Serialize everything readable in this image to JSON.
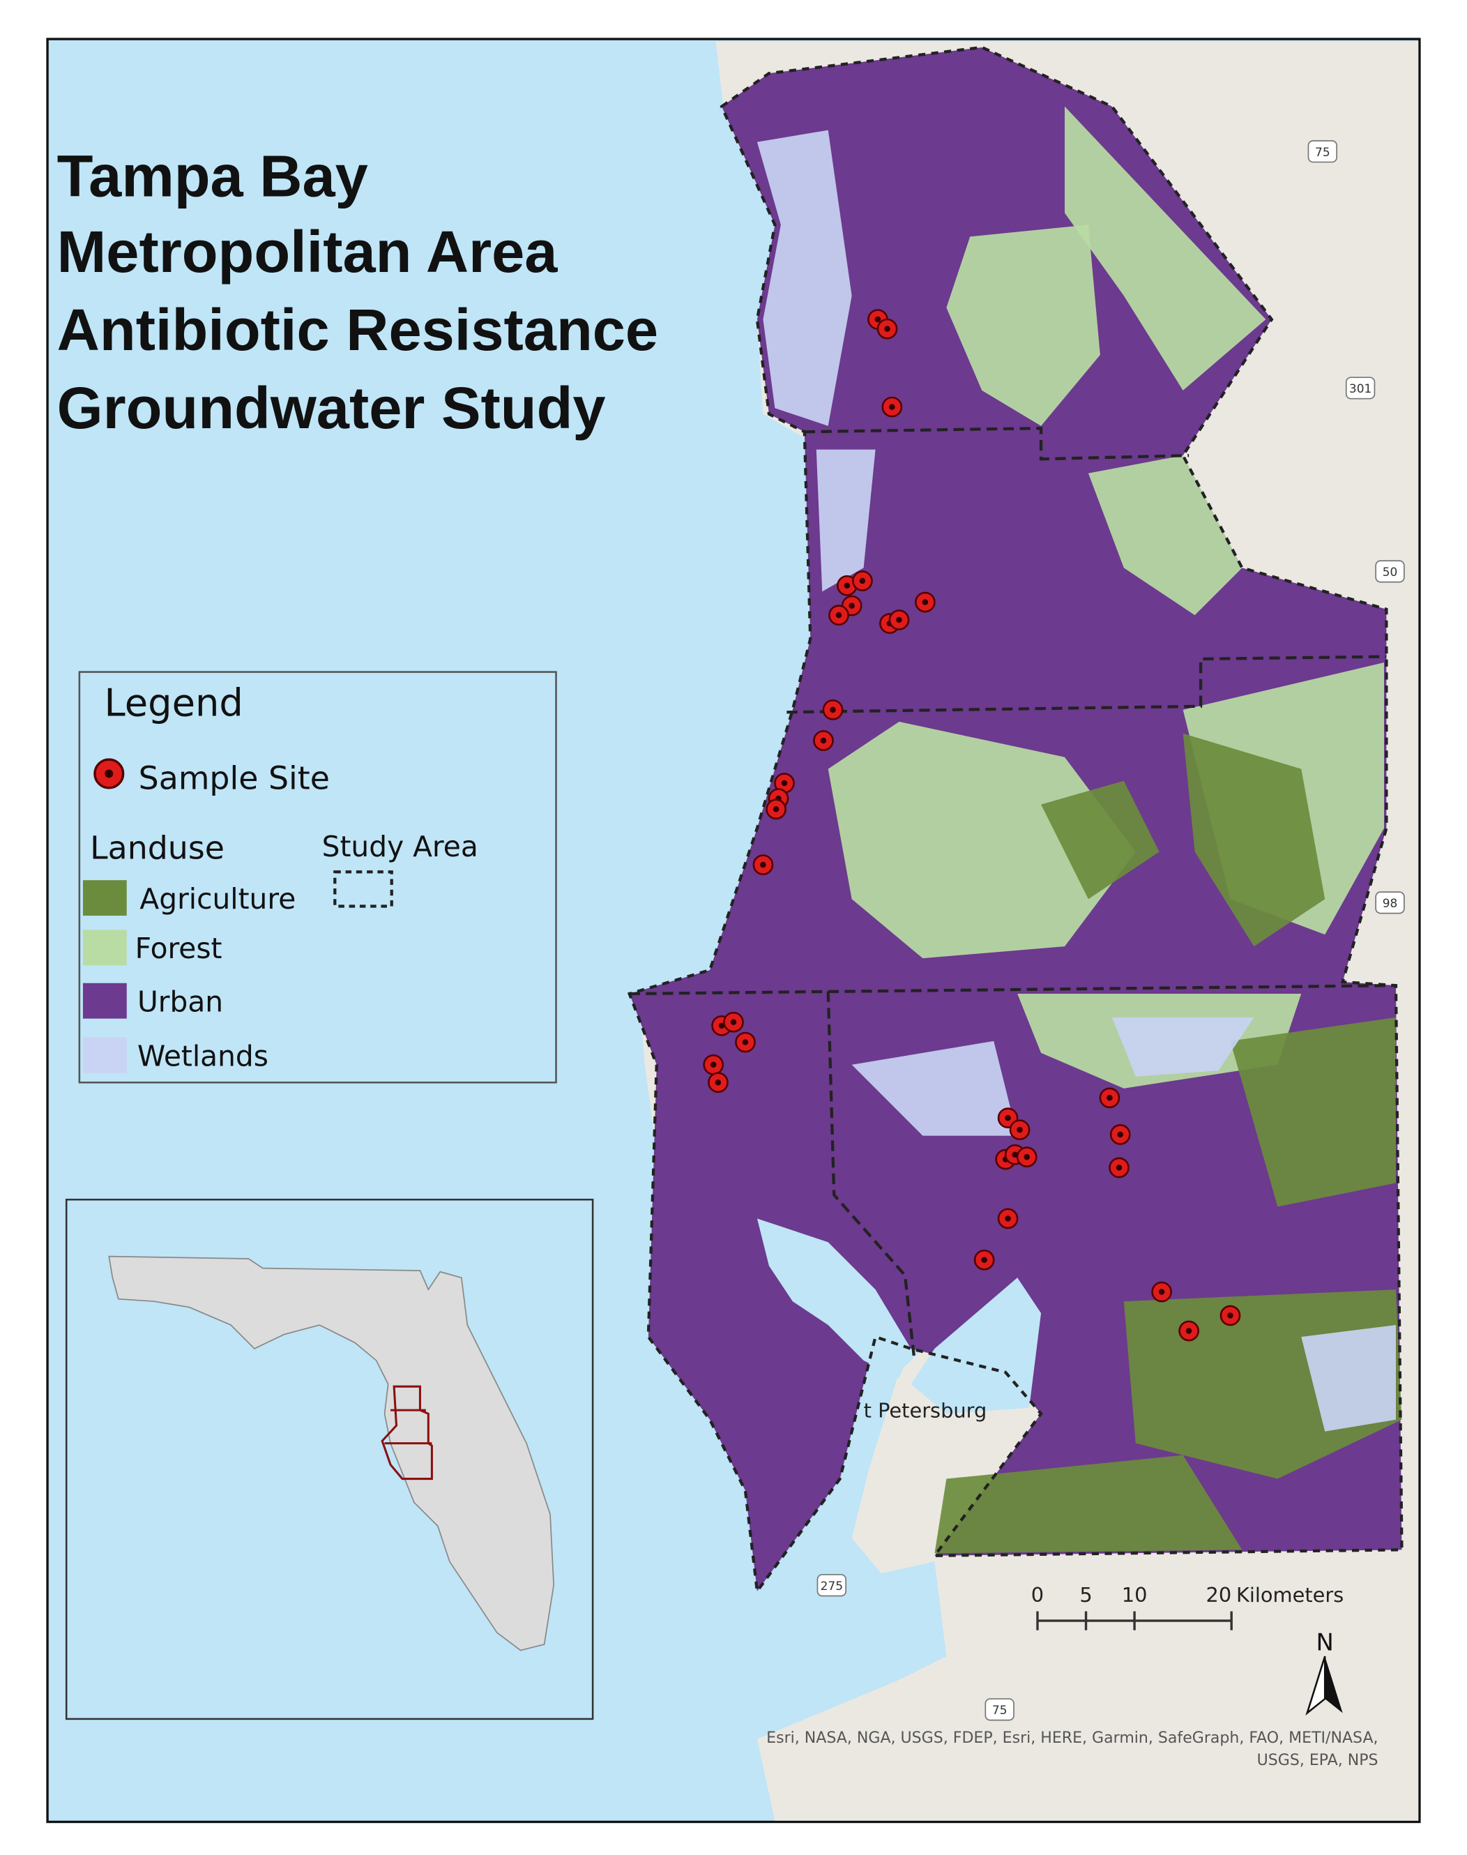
{
  "title_lines": [
    "Tampa Bay",
    "Metropolitan Area",
    "Antibiotic Resistance",
    "Groundwater Study"
  ],
  "legend": {
    "title": "Legend",
    "sample_site": "Sample Site",
    "landuse_title": "Landuse",
    "study_area": "Study Area",
    "landuse": [
      {
        "label": "Agriculture",
        "color": "#6b8c3c"
      },
      {
        "label": "Forest",
        "color": "#b8dca3"
      },
      {
        "label": "Urban",
        "color": "#6c3a8e"
      },
      {
        "label": "Wetlands",
        "color": "#c9d3f3"
      }
    ]
  },
  "place_label": "t Petersburg",
  "road_shields": [
    75,
    301,
    50,
    98,
    275,
    75
  ],
  "scale_bar": {
    "ticks": [
      0,
      5,
      10,
      20
    ],
    "unit": "Kilometers"
  },
  "north": "N",
  "attribution": [
    "Esri, NASA, NGA, USGS, FDEP, Esri, HERE, Garmin, SafeGraph, FAO, METI/NASA,",
    "USGS, EPA, NPS"
  ]
}
